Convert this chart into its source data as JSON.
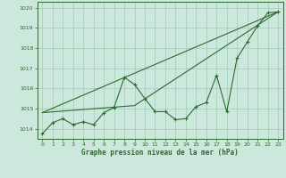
{
  "title": "Graphe pression niveau de la mer (hPa)",
  "background_color": "#cce8dc",
  "grid_color": "#9ecdb8",
  "line_color": "#2d6a2d",
  "xlim": [
    -0.5,
    23.5
  ],
  "ylim": [
    1013.5,
    1020.3
  ],
  "yticks": [
    1014,
    1015,
    1016,
    1017,
    1018,
    1019,
    1020
  ],
  "xticks": [
    0,
    1,
    2,
    3,
    4,
    5,
    6,
    7,
    8,
    9,
    10,
    11,
    12,
    13,
    14,
    15,
    16,
    17,
    18,
    19,
    20,
    21,
    22,
    23
  ],
  "y_main": [
    1013.75,
    1014.3,
    1014.5,
    1014.2,
    1014.35,
    1014.2,
    1014.8,
    1015.05,
    1016.55,
    1016.2,
    1015.5,
    1014.85,
    1014.85,
    1014.45,
    1014.5,
    1015.1,
    1015.3,
    1016.65,
    1014.85,
    1017.5,
    1018.3,
    1019.1,
    1019.75,
    1019.8
  ],
  "trend1_x": [
    0,
    23
  ],
  "trend1_y": [
    1014.8,
    1019.8
  ],
  "trend2_x": [
    0,
    9,
    23
  ],
  "trend2_y": [
    1014.8,
    1015.15,
    1019.8
  ]
}
